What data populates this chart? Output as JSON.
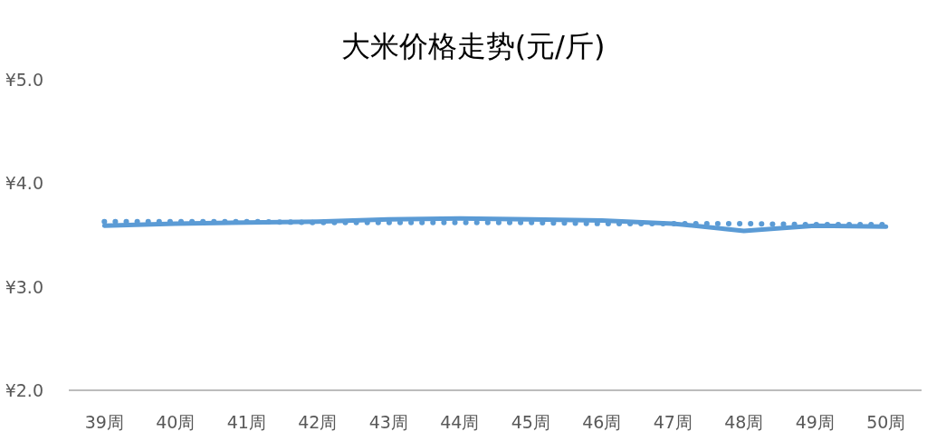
{
  "chart_data": {
    "type": "line",
    "title": "大米价格走势(元/斤)",
    "categories": [
      "39周",
      "40周",
      "41周",
      "42周",
      "43周",
      "44周",
      "45周",
      "46周",
      "47周",
      "48周",
      "49周",
      "50周"
    ],
    "series": [
      {
        "color": "#5b9bd5",
        "line_style": "solid",
        "values": [
          3.59,
          3.61,
          3.62,
          3.63,
          3.65,
          3.66,
          3.65,
          3.64,
          3.61,
          3.54,
          3.59,
          3.58
        ]
      },
      {
        "color": "#5b9bd5",
        "line_style": "dotted",
        "values": [
          3.63,
          3.63,
          3.63,
          3.62,
          3.62,
          3.62,
          3.62,
          3.61,
          3.61,
          3.61,
          3.6,
          3.6
        ]
      }
    ],
    "ylim": [
      2,
      5
    ],
    "yticks": [
      {
        "value": 2,
        "label": "¥2.0"
      },
      {
        "value": 3,
        "label": "¥3.0"
      },
      {
        "value": 4,
        "label": "¥4.0"
      },
      {
        "value": 5,
        "label": "¥5.0"
      }
    ],
    "grid": false,
    "marker": "none"
  }
}
